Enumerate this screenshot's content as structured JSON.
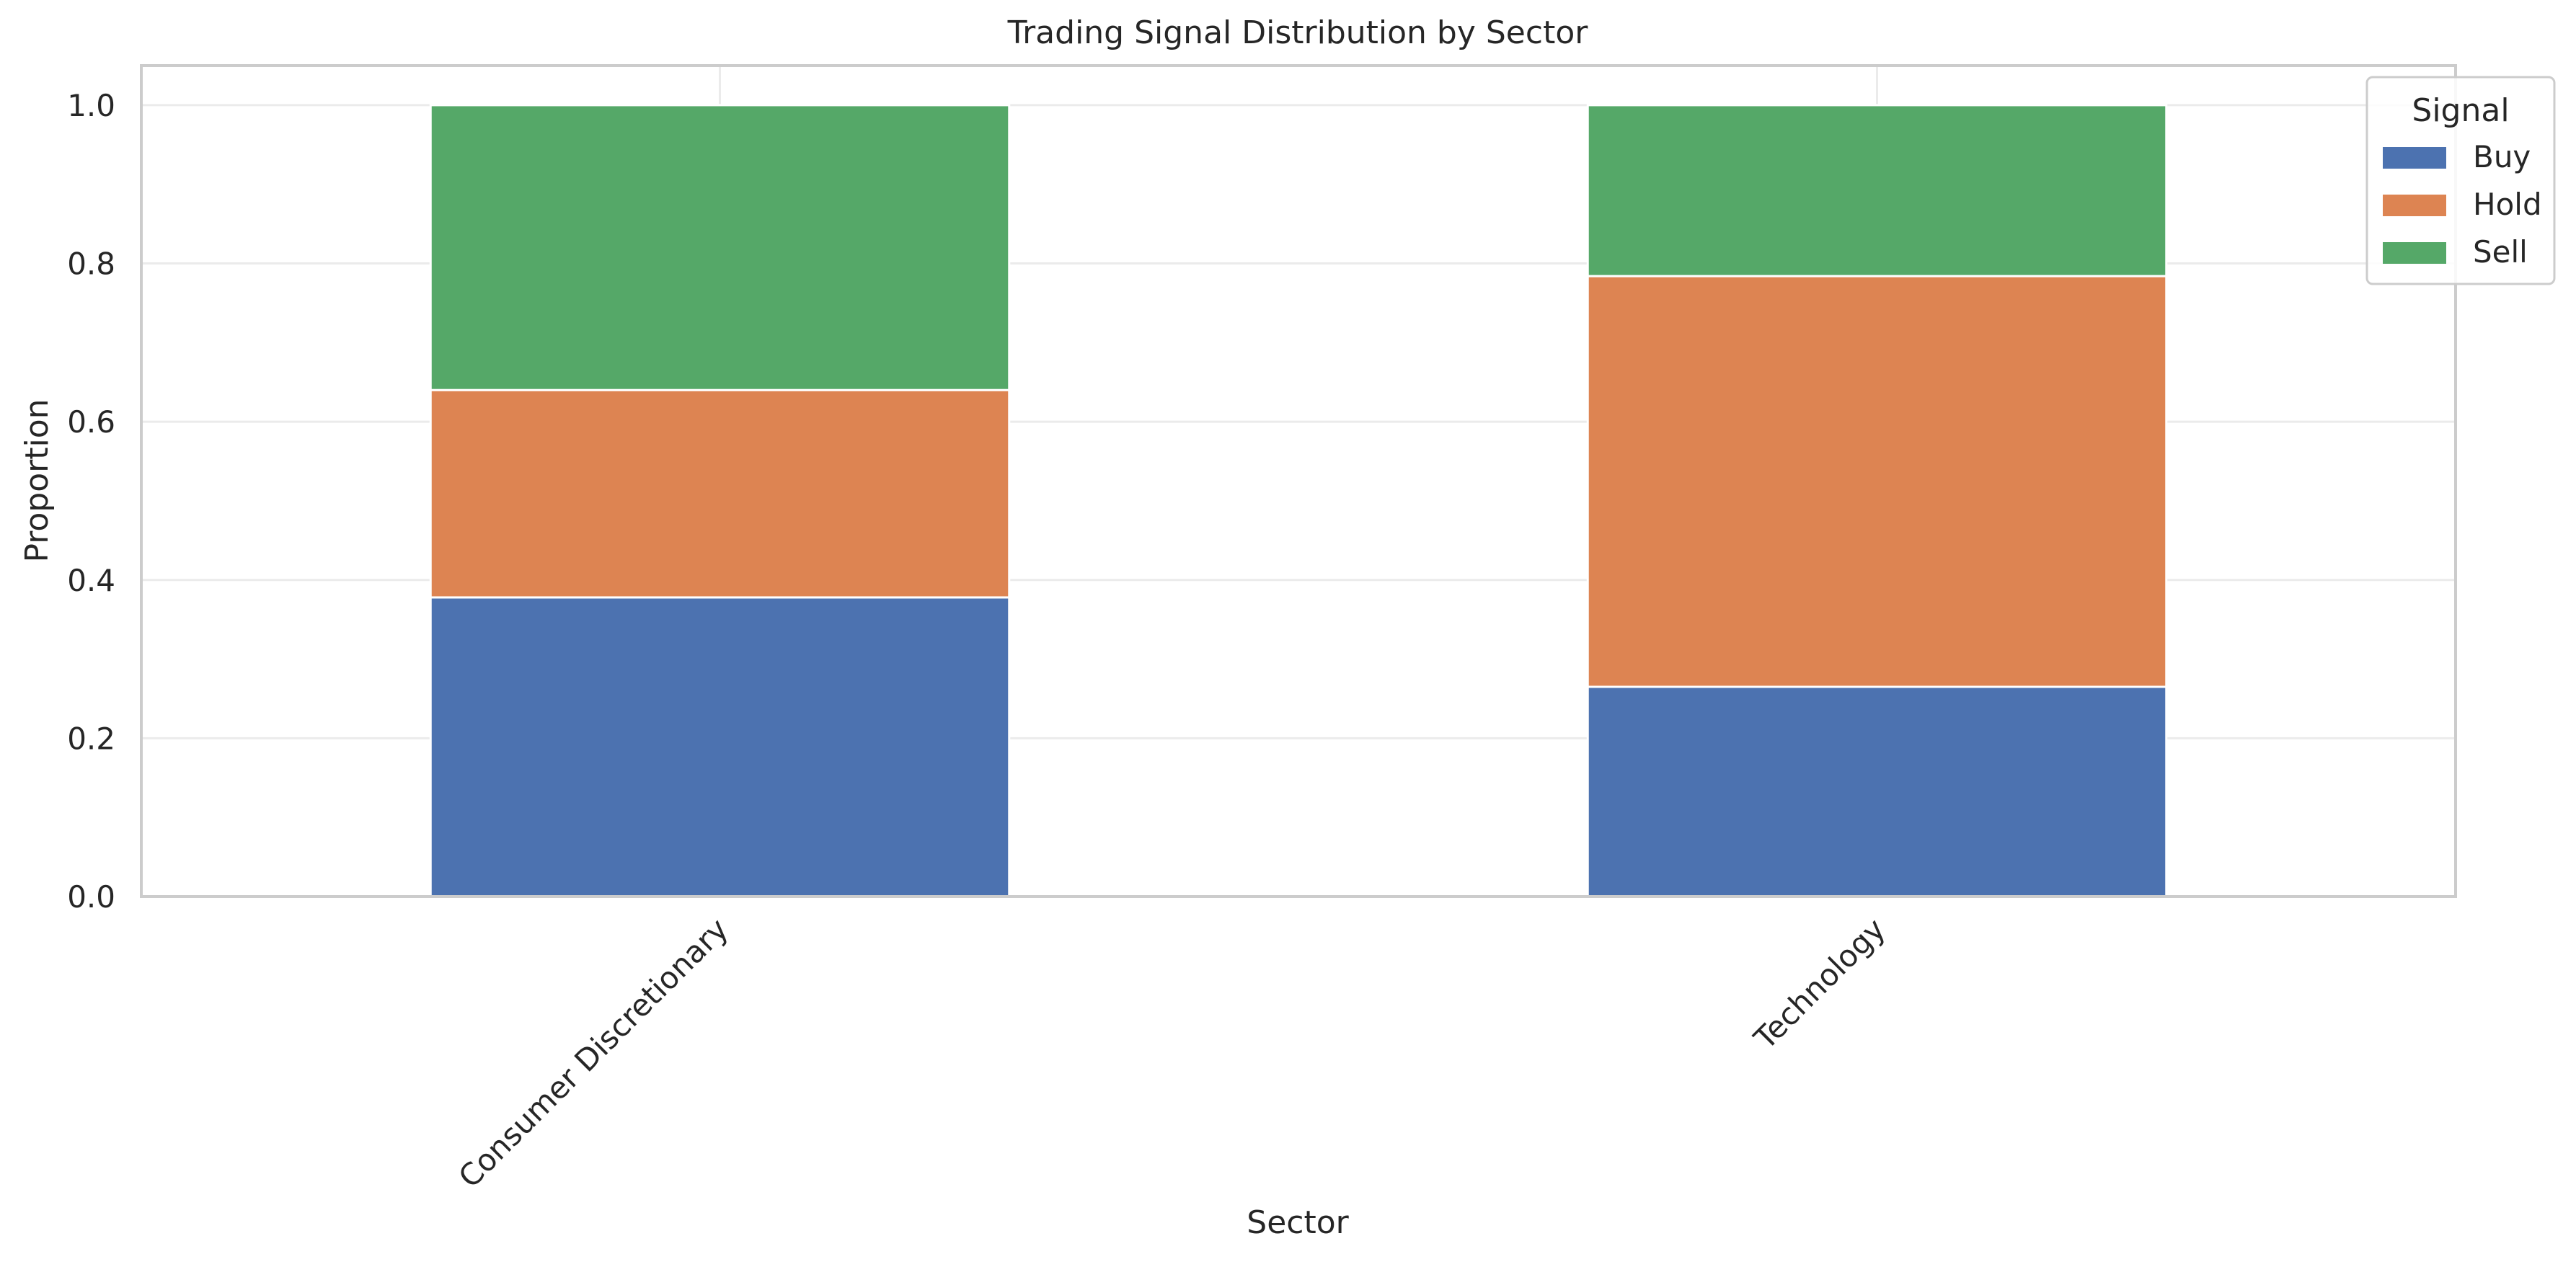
{
  "chart_data": {
    "type": "bar",
    "stacked": true,
    "title": "Trading Signal Distribution by Sector",
    "xlabel": "Sector",
    "ylabel": "Proportion",
    "categories": [
      "Consumer Discretionary",
      "Technology"
    ],
    "series": [
      {
        "name": "Buy",
        "color": "#4c72b0",
        "values": [
          0.378,
          0.265
        ]
      },
      {
        "name": "Hold",
        "color": "#dd8452",
        "values": [
          0.262,
          0.519
        ]
      },
      {
        "name": "Sell",
        "color": "#55a868",
        "values": [
          0.36,
          0.216
        ]
      }
    ],
    "ylim": [
      0,
      1.05
    ],
    "yticks": [
      0.0,
      0.2,
      0.4,
      0.6,
      0.8,
      1.0
    ],
    "ytick_labels": [
      "0.0",
      "0.2",
      "0.4",
      "0.6",
      "0.8",
      "1.0"
    ],
    "grid": true,
    "legend": {
      "title": "Signal",
      "placement": "top-right"
    }
  }
}
